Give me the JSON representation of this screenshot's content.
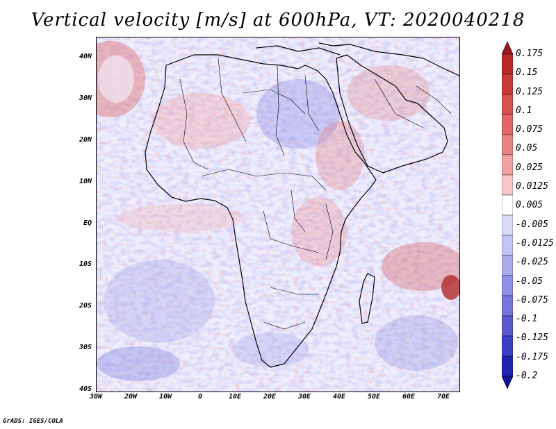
{
  "title": "Vertical velocity [m/s] at 600hPa, VT: 2020040218",
  "map": {
    "region": "Africa",
    "lat_labels": [
      "40N",
      "30N",
      "20N",
      "10N",
      "EQ",
      "10S",
      "20S",
      "30S",
      "40S"
    ],
    "lon_labels": [
      "30W",
      "20W",
      "10W",
      "0",
      "10E",
      "20E",
      "30E",
      "40E",
      "50E",
      "60E",
      "70E"
    ]
  },
  "colorbar": {
    "labels": [
      "0.175",
      "0.15",
      "0.125",
      "0.1",
      "0.075",
      "0.05",
      "0.025",
      "0.0125",
      "0.005",
      "-0.005",
      "-0.0125",
      "-0.025",
      "-0.05",
      "-0.075",
      "-0.1",
      "-0.125",
      "-0.175",
      "-0.2"
    ],
    "colors": [
      "#a01818",
      "#b82828",
      "#c83a3a",
      "#d65050",
      "#e06868",
      "#e88484",
      "#f0a2a2",
      "#f8c6c6",
      "#ffffff",
      "#dcdcfa",
      "#c4c4f4",
      "#aaaaee",
      "#9090e6",
      "#7676dc",
      "#5a5ad0",
      "#3e3ec4",
      "#2222b0",
      "#14149c"
    ]
  },
  "credit": "GrADS: IGES/COLA"
}
